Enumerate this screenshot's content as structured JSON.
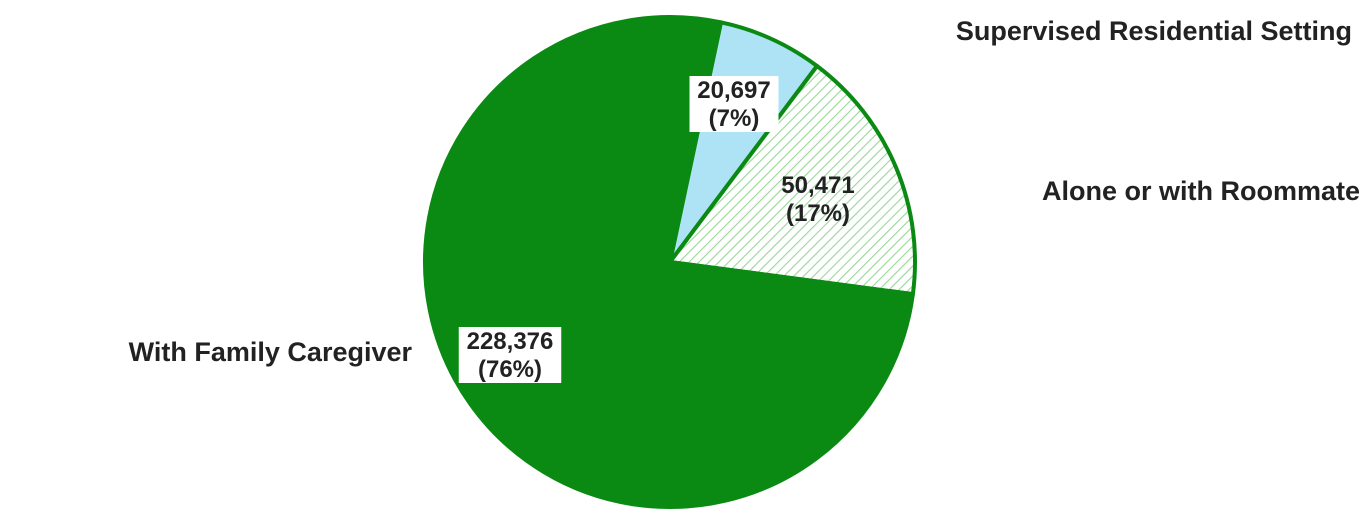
{
  "chart_data": {
    "type": "pie",
    "title": "",
    "slices": [
      {
        "label": "Supervised Residential Setting",
        "value": 20697,
        "value_text": "20,697",
        "percent_text": "(7%)",
        "color": "#aee2f5",
        "pattern": "solid"
      },
      {
        "label": "Alone or with Roommate",
        "value": 50471,
        "value_text": "50,471",
        "percent_text": "(17%)",
        "color": "#ffffff",
        "hatch_color": "#9ad69a",
        "pattern": "diagonal-hatch"
      },
      {
        "label": "With Family Caregiver",
        "value": 228376,
        "value_text": "228,376",
        "percent_text": "(76%)",
        "color": "#0a8a12",
        "pattern": "solid"
      }
    ],
    "start_angle_deg": 12,
    "border_color": "#0a8a12"
  }
}
